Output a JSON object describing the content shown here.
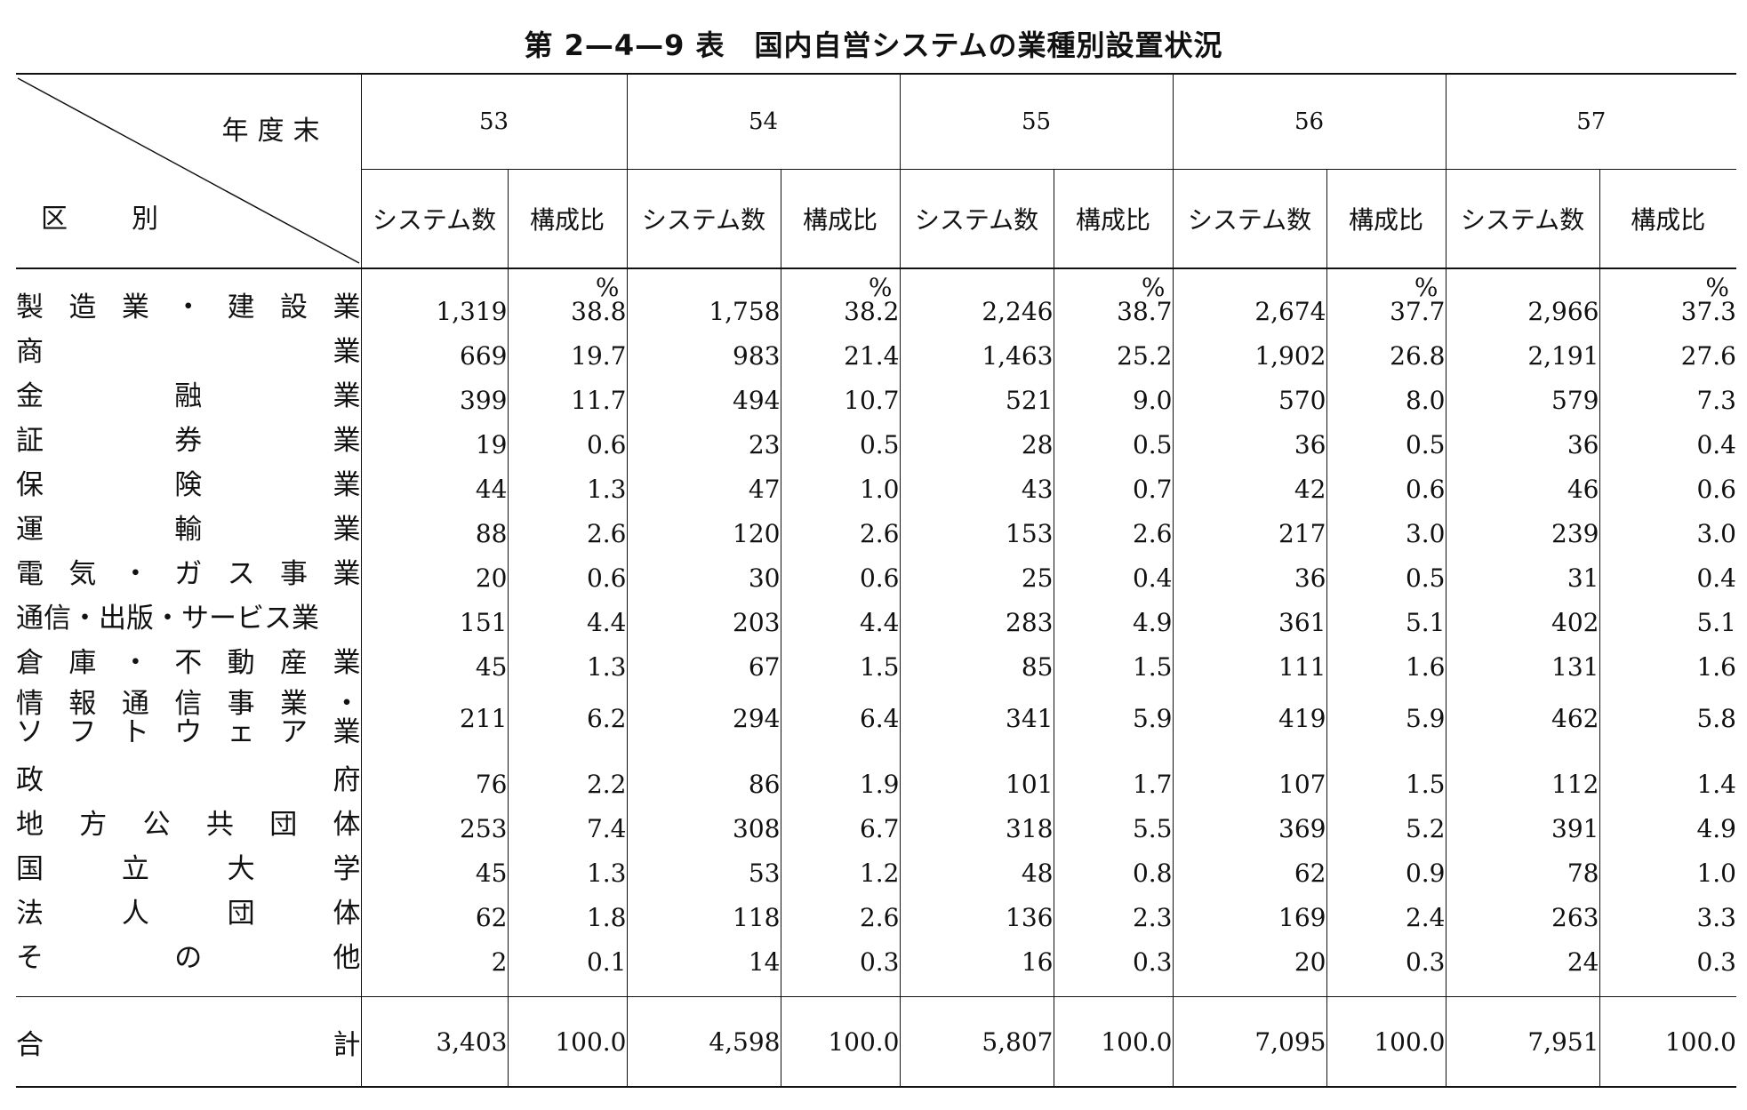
{
  "title": "第 2—4—9 表　国内自営システムの業種別設置状況",
  "header": {
    "year_label": "年度末",
    "category_label_1": "区",
    "category_label_2": "別",
    "years": [
      "53",
      "54",
      "55",
      "56",
      "57"
    ],
    "col_count": "システム数",
    "col_ratio": "構成比",
    "percent_unit": "%"
  },
  "rows": [
    {
      "name": "製造業・建設業",
      "values": [
        "1,319",
        "38.8",
        "1,758",
        "38.2",
        "2,246",
        "38.7",
        "2,674",
        "37.7",
        "2,966",
        "37.3"
      ]
    },
    {
      "name": "商業",
      "values": [
        "669",
        "19.7",
        "983",
        "21.4",
        "1,463",
        "25.2",
        "1,902",
        "26.8",
        "2,191",
        "27.6"
      ]
    },
    {
      "name": "金融業",
      "values": [
        "399",
        "11.7",
        "494",
        "10.7",
        "521",
        "9.0",
        "570",
        "8.0",
        "579",
        "7.3"
      ]
    },
    {
      "name": "証券業",
      "values": [
        "19",
        "0.6",
        "23",
        "0.5",
        "28",
        "0.5",
        "36",
        "0.5",
        "36",
        "0.4"
      ]
    },
    {
      "name": "保険業",
      "values": [
        "44",
        "1.3",
        "47",
        "1.0",
        "43",
        "0.7",
        "42",
        "0.6",
        "46",
        "0.6"
      ]
    },
    {
      "name": "運輸業",
      "values": [
        "88",
        "2.6",
        "120",
        "2.6",
        "153",
        "2.6",
        "217",
        "3.0",
        "239",
        "3.0"
      ]
    },
    {
      "name": "電気・ガス事業",
      "values": [
        "20",
        "0.6",
        "30",
        "0.6",
        "25",
        "0.4",
        "36",
        "0.5",
        "31",
        "0.4"
      ]
    },
    {
      "name": "通信・出版・サービス業",
      "values": [
        "151",
        "4.4",
        "203",
        "4.4",
        "283",
        "4.9",
        "361",
        "5.1",
        "402",
        "5.1"
      ]
    },
    {
      "name": "倉庫・不動産業",
      "values": [
        "45",
        "1.3",
        "67",
        "1.5",
        "85",
        "1.5",
        "111",
        "1.6",
        "131",
        "1.6"
      ]
    },
    {
      "name": "情報通信事業・",
      "name2": "ソフトウェア業",
      "values": [
        "211",
        "6.2",
        "294",
        "6.4",
        "341",
        "5.9",
        "419",
        "5.9",
        "462",
        "5.8"
      ]
    },
    {
      "name": "政府",
      "values": [
        "76",
        "2.2",
        "86",
        "1.9",
        "101",
        "1.7",
        "107",
        "1.5",
        "112",
        "1.4"
      ]
    },
    {
      "name": "地方公共団体",
      "values": [
        "253",
        "7.4",
        "308",
        "6.7",
        "318",
        "5.5",
        "369",
        "5.2",
        "391",
        "4.9"
      ]
    },
    {
      "name": "国立大学",
      "values": [
        "45",
        "1.3",
        "53",
        "1.2",
        "48",
        "0.8",
        "62",
        "0.9",
        "78",
        "1.0"
      ]
    },
    {
      "name": "法人団体",
      "values": [
        "62",
        "1.8",
        "118",
        "2.6",
        "136",
        "2.3",
        "169",
        "2.4",
        "263",
        "3.3"
      ]
    },
    {
      "name": "その他",
      "values": [
        "2",
        "0.1",
        "14",
        "0.3",
        "16",
        "0.3",
        "20",
        "0.3",
        "24",
        "0.3"
      ]
    }
  ],
  "total": {
    "name": "合計",
    "values": [
      "3,403",
      "100.0",
      "4,598",
      "100.0",
      "5,807",
      "100.0",
      "7,095",
      "100.0",
      "7,951",
      "100.0"
    ]
  }
}
